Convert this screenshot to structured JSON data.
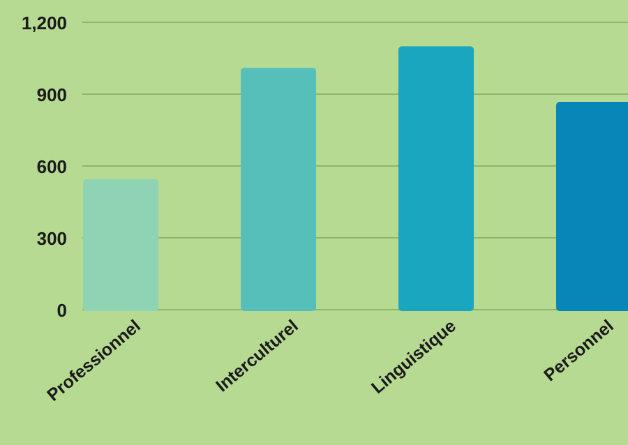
{
  "chart_data": {
    "type": "bar",
    "categories": [
      "Professionnel",
      "Interculturel",
      "Linguistique",
      "Personnel"
    ],
    "values": [
      545,
      1010,
      1100,
      868
    ],
    "title": "",
    "xlabel": "",
    "ylabel": "",
    "ylim": [
      0,
      1200
    ],
    "yticks": [
      0,
      300,
      600,
      900,
      1200
    ],
    "ytick_labels": [
      "0",
      "300",
      "600",
      "900",
      "1,200"
    ],
    "grid": true,
    "colors": [
      "#8ed3b4",
      "#56bfb9",
      "#1aa6be",
      "#0687b7"
    ],
    "background": "#b7da93",
    "grid_color": "#7fab5c"
  }
}
